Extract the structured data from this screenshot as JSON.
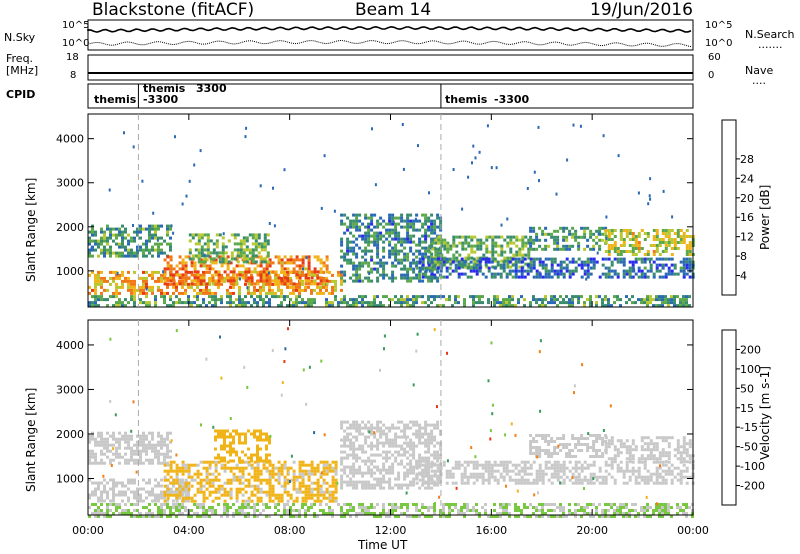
{
  "header": {
    "site": "Blackstone (fitACF)",
    "beam": "Beam 14",
    "date": "19/Jun/2016"
  },
  "noise_panel": {
    "left_label": "N.Sky",
    "left_ticks": [
      "10^5",
      "10^0"
    ],
    "right_label": "N.Search",
    "right_ticks": [
      "10^5",
      "10^0"
    ],
    "dots": "......."
  },
  "freq_panel": {
    "left_label_1": "Freq.",
    "left_label_2": "[MHz]",
    "left_ticks": [
      "18",
      "8"
    ],
    "right_label": "Nave",
    "right_ticks": [
      "60",
      "0"
    ],
    "dots": "...."
  },
  "cpid_panel": {
    "label": "CPID",
    "entries": [
      {
        "name": "themis",
        "value": "-3300",
        "t_start": 0.0
      },
      {
        "name": "themis",
        "value": "3300",
        "t_start": 2.0
      },
      {
        "name": "themis",
        "value": "-3300",
        "t_start": 14.0
      }
    ]
  },
  "chart_data": [
    {
      "type": "heatmap",
      "title": "",
      "ylabel": "Slant Range [km]",
      "xlabel": "Time UT",
      "xlim": [
        0,
        24
      ],
      "ylim": [
        180,
        4560
      ],
      "x_ticks": [
        "00:00",
        "04:00",
        "08:00",
        "12:00",
        "16:00",
        "20:00",
        "00:00"
      ],
      "y_ticks": [
        "1000",
        "2000",
        "3000",
        "4000"
      ],
      "colorbar": {
        "label": "Power [dB]",
        "ticks": [
          "4",
          "8",
          "12",
          "16",
          "20",
          "24",
          "28"
        ],
        "colors": [
          "#2a2aee",
          "#2a6ab4",
          "#3a8c6e",
          "#5aa84a",
          "#b8c830",
          "#f0b418",
          "#f07818",
          "#e83a14",
          "#c01010"
        ],
        "vmin": 0,
        "vmax": 31
      },
      "bands": [
        {
          "t0": 0.0,
          "t1": 3.3,
          "r0": 1350,
          "r1": 2050,
          "level": 10
        },
        {
          "t0": 0.0,
          "t1": 10.0,
          "r0": 500,
          "r1": 1000,
          "level": 20
        },
        {
          "t0": 3.0,
          "t1": 9.5,
          "r0": 700,
          "r1": 1350,
          "level": 22
        },
        {
          "t0": 4.0,
          "t1": 7.2,
          "r0": 1200,
          "r1": 1850,
          "level": 12
        },
        {
          "t0": 10.0,
          "t1": 14.0,
          "r0": 800,
          "r1": 2300,
          "level": 8
        },
        {
          "t0": 13.5,
          "t1": 17.5,
          "r0": 1100,
          "r1": 1800,
          "level": 12
        },
        {
          "t0": 13.0,
          "t1": 24.0,
          "r0": 850,
          "r1": 1300,
          "level": 6
        },
        {
          "t0": 17.5,
          "t1": 20.5,
          "r0": 1500,
          "r1": 2000,
          "level": 10
        },
        {
          "t0": 20.5,
          "t1": 24.0,
          "r0": 1400,
          "r1": 1950,
          "level": 16
        },
        {
          "t0": 0.0,
          "t1": 24.0,
          "r0": 180,
          "r1": 450,
          "level": 10
        }
      ]
    },
    {
      "type": "heatmap",
      "title": "",
      "ylabel": "Slant Range [km]",
      "xlabel": "Time UT",
      "xlim": [
        0,
        24
      ],
      "ylim": [
        180,
        4560
      ],
      "x_ticks": [
        "00:00",
        "04:00",
        "08:00",
        "12:00",
        "16:00",
        "20:00",
        "00:00"
      ],
      "y_ticks": [
        "1000",
        "2000",
        "3000",
        "4000"
      ],
      "colorbar": {
        "label": "Velocity [m s-1]",
        "ticks": [
          "200",
          "100",
          "50",
          "15",
          "-15",
          "-50",
          "-100",
          "-200"
        ],
        "colors": [
          "#2a2acc",
          "#2a6aa0",
          "#3a9a5a",
          "#78c840",
          "#c8c8c8",
          "#f0b418",
          "#f08018",
          "#e83a14",
          "#e01010"
        ],
        "vmin": -250,
        "vmax": 250
      },
      "bands": [
        {
          "t0": 0.0,
          "t1": 3.3,
          "r0": 1350,
          "r1": 2050,
          "level": -5
        },
        {
          "t0": 0.0,
          "t1": 4.0,
          "r0": 500,
          "r1": 1000,
          "level": -5
        },
        {
          "t0": 3.0,
          "t1": 9.8,
          "r0": 500,
          "r1": 1400,
          "level": -40
        },
        {
          "t0": 5.0,
          "t1": 7.2,
          "r0": 1400,
          "r1": 2100,
          "level": -60
        },
        {
          "t0": 10.0,
          "t1": 14.0,
          "r0": 800,
          "r1": 2300,
          "level": 5
        },
        {
          "t0": 13.0,
          "t1": 24.0,
          "r0": 900,
          "r1": 1400,
          "level": 0
        },
        {
          "t0": 17.5,
          "t1": 20.5,
          "r0": 1500,
          "r1": 2000,
          "level": 0
        },
        {
          "t0": 20.5,
          "t1": 24.0,
          "r0": 1400,
          "r1": 1950,
          "level": 0
        },
        {
          "t0": 0.0,
          "t1": 24.0,
          "r0": 180,
          "r1": 450,
          "level": 30
        }
      ]
    }
  ]
}
